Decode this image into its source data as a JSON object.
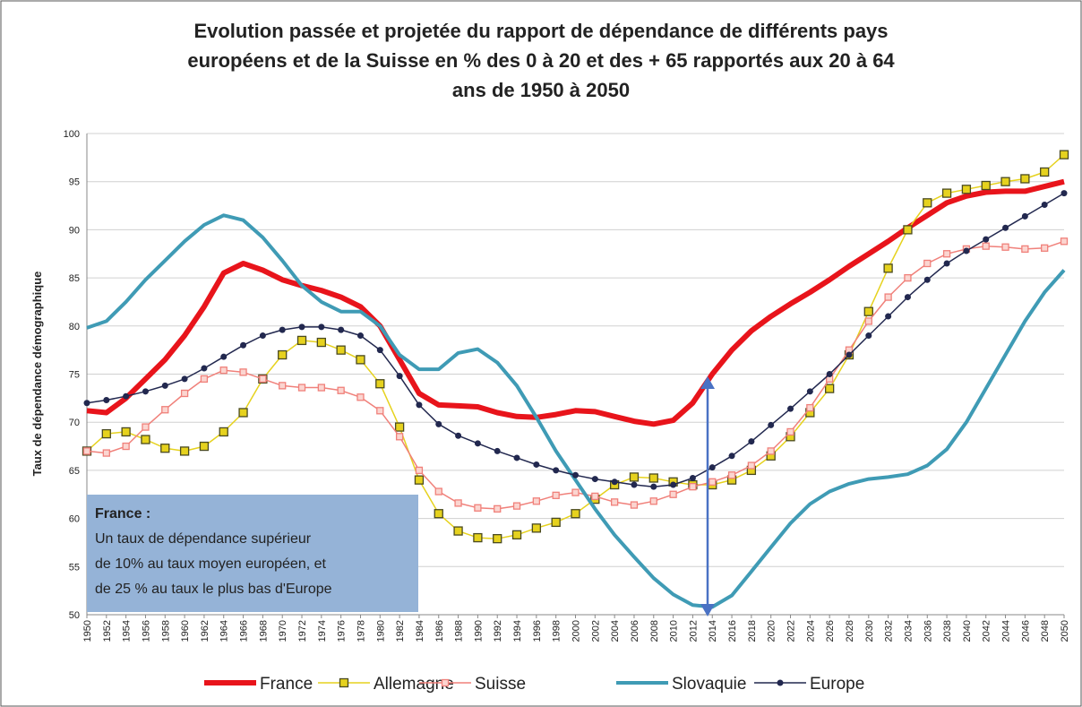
{
  "chart_data": {
    "type": "line",
    "title": [
      "Evolution passée et projetée du rapport de dépendance de différents pays",
      "européens et de la Suisse en % des 0 à 20  et des + 65 rapportés aux 20 à 64",
      "ans de 1950 à 2050"
    ],
    "y_label": "Taux de dépendance démographique",
    "annotation": {
      "title": "France :",
      "lines": [
        "Un taux de dépendance supérieur",
        "de 10% au taux moyen européen, et",
        "de 25 % au taux  le plus bas d'Europe"
      ]
    },
    "x": [
      1950,
      1952,
      1954,
      1956,
      1958,
      1960,
      1962,
      1964,
      1966,
      1968,
      1970,
      1972,
      1974,
      1976,
      1978,
      1980,
      1982,
      1984,
      1986,
      1988,
      1990,
      1992,
      1994,
      1996,
      1998,
      2000,
      2002,
      2004,
      2006,
      2008,
      2010,
      2012,
      2014,
      2016,
      2018,
      2020,
      2022,
      2024,
      2026,
      2028,
      2030,
      2032,
      2034,
      2036,
      2038,
      2040,
      2042,
      2044,
      2046,
      2048,
      2050
    ],
    "xlim": [
      1950,
      2050
    ],
    "xticks": [
      1950,
      1952,
      1954,
      1956,
      1958,
      1960,
      1962,
      1964,
      1966,
      1968,
      1970,
      1972,
      1974,
      1976,
      1978,
      1980,
      1982,
      1984,
      1986,
      1988,
      1990,
      1992,
      1994,
      1996,
      1998,
      2000,
      2002,
      2004,
      2006,
      2008,
      2010,
      2012,
      2014,
      2016,
      2018,
      2020,
      2022,
      2024,
      2026,
      2028,
      2030,
      2032,
      2034,
      2036,
      2038,
      2040,
      2042,
      2044,
      2046,
      2048,
      2050
    ],
    "ylim": [
      50,
      100
    ],
    "yticks": [
      50,
      55,
      60,
      65,
      70,
      75,
      80,
      85,
      90,
      95,
      100
    ],
    "grid": true,
    "legend": "bottom",
    "series": [
      {
        "name": "France",
        "color": "#e8141b",
        "values": [
          71.2,
          71,
          72.5,
          74.5,
          76.5,
          79,
          82,
          85.5,
          86.5,
          85.8,
          84.8,
          84.2,
          83.7,
          83,
          82,
          80,
          76.5,
          73,
          71.8,
          71.7,
          71.6,
          71,
          70.6,
          70.5,
          70.8,
          71.2,
          71.1,
          70.6,
          70.1,
          69.8,
          70.2,
          72,
          75,
          77.5,
          79.5,
          81,
          82.3,
          83.5,
          84.8,
          86.2,
          87.5,
          88.8,
          90.2,
          91.5,
          92.8,
          93.5,
          93.9,
          94,
          94,
          94.5,
          95
        ]
      },
      {
        "name": "Allemagne",
        "color": "#e6d21e",
        "values": [
          67,
          68.8,
          69,
          68.2,
          67.3,
          67,
          67.5,
          69,
          71,
          74.5,
          77,
          78.5,
          78.3,
          77.5,
          76.5,
          74,
          69.5,
          64,
          60.5,
          58.7,
          58,
          57.9,
          58.3,
          59,
          59.6,
          60.5,
          62,
          63.5,
          64.3,
          64.2,
          63.8,
          63.5,
          63.5,
          64,
          65,
          66.5,
          68.5,
          71,
          73.5,
          77,
          81.5,
          86,
          90,
          92.8,
          93.8,
          94.2,
          94.6,
          95,
          95.3,
          96,
          97.8
        ]
      },
      {
        "name": "Suisse",
        "color": "#f0807a",
        "values": [
          67,
          66.8,
          67.5,
          69.5,
          71.3,
          73,
          74.5,
          75.4,
          75.2,
          74.5,
          73.8,
          73.6,
          73.6,
          73.3,
          72.6,
          71.2,
          68.5,
          65,
          62.8,
          61.6,
          61.1,
          61,
          61.3,
          61.8,
          62.4,
          62.7,
          62.3,
          61.7,
          61.4,
          61.8,
          62.5,
          63.3,
          63.8,
          64.5,
          65.5,
          67,
          69,
          71.5,
          74.5,
          77.5,
          80.5,
          83,
          85,
          86.5,
          87.5,
          88,
          88.3,
          88.2,
          88,
          88.1,
          88.8
        ]
      },
      {
        "name": "Slovaquie",
        "color": "#3f9bb5",
        "values": [
          79.8,
          80.5,
          82.5,
          84.8,
          86.8,
          88.8,
          90.5,
          91.5,
          91,
          89.2,
          86.8,
          84.2,
          82.5,
          81.5,
          81.5,
          80,
          77,
          75.5,
          75.5,
          77.2,
          77.6,
          76.2,
          73.8,
          70.5,
          67,
          64,
          61,
          58.3,
          56,
          53.8,
          52.1,
          51,
          50.8,
          52,
          54.5,
          57,
          59.5,
          61.5,
          62.8,
          63.6,
          64.1,
          64.3,
          64.6,
          65.5,
          67.2,
          70,
          73.5,
          77,
          80.5,
          83.5,
          85.8
        ]
      },
      {
        "name": "Europe",
        "color": "#22284f",
        "values": [
          72,
          72.3,
          72.7,
          73.2,
          73.8,
          74.5,
          75.6,
          76.8,
          78,
          79,
          79.6,
          79.9,
          79.9,
          79.6,
          79,
          77.5,
          74.8,
          71.8,
          69.8,
          68.6,
          67.8,
          67,
          66.3,
          65.6,
          65,
          64.5,
          64.1,
          63.8,
          63.5,
          63.3,
          63.5,
          64.2,
          65.3,
          66.5,
          68,
          69.7,
          71.4,
          73.2,
          75,
          77,
          79,
          81,
          83,
          84.8,
          86.5,
          87.8,
          89,
          90.2,
          91.4,
          92.6,
          93.8
        ]
      }
    ]
  }
}
